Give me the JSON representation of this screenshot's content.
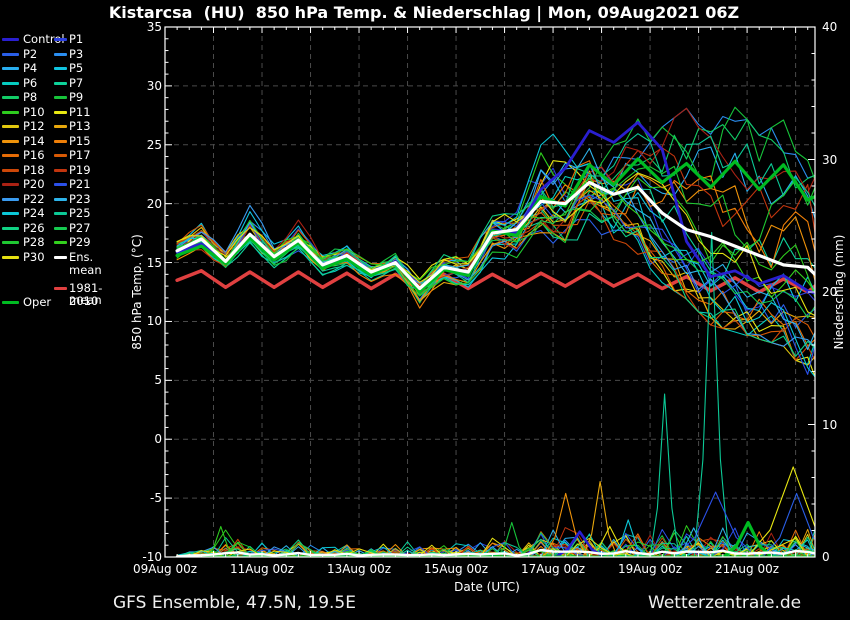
{
  "title": "Kistarcsa  (HU)  850 hPa Temp. & Niederschlag | Mon, 09Aug2021 06Z",
  "footer": {
    "left": "GFS Ensemble, 47.5N, 19.5E",
    "right": "Wetterzentrale.de"
  },
  "axes": {
    "x": {
      "label": "Date (UTC)",
      "tick_labels": [
        "09Aug 00z",
        "11Aug 00z",
        "13Aug 00z",
        "15Aug 00z",
        "17Aug 00z",
        "19Aug 00z",
        "21Aug 00z"
      ],
      "range_days": [
        0,
        13.4
      ],
      "minor_tick_hours": 6,
      "major_tick_hours": 24
    },
    "y_left": {
      "label": "850 hPa Temp. (°C)",
      "min": -10,
      "max": 35,
      "tick_step": 5,
      "minor_step": 1,
      "tick_labels": [
        "35",
        "30",
        "25",
        "20",
        "15",
        "10",
        "5",
        "0",
        "-5",
        "-10"
      ]
    },
    "y_right": {
      "label": "Niederschlag (mm)",
      "min": 0,
      "max": 40,
      "tick_step": 10,
      "minor_step": 2,
      "tick_labels": [
        "40",
        "30",
        "20",
        "10",
        "0"
      ]
    }
  },
  "legend": {
    "ens_mean_label": "Ens. mean",
    "climate_label_line1": "1981-2010",
    "climate_label_line2": "mean",
    "oper_label": "Oper"
  },
  "colors": {
    "background": "#000000",
    "text": "#ffffff",
    "grid": "#4a4a4a",
    "frame": "#ffffff",
    "ens_mean": "#ffffff",
    "climate_mean": "#e04040",
    "oper": "#00bb22",
    "control": "#2a1fd0"
  },
  "chart_data": {
    "type": "line",
    "title": "Kistarcsa (HU) 850 hPa Temp. & Niederschlag | Mon, 09Aug2021 06Z",
    "x_unit": "days since 09Aug2021 00Z",
    "sample_times_days": [
      0.25,
      0.75,
      1.25,
      1.75,
      2.25,
      2.75,
      3.25,
      3.75,
      4.25,
      4.75,
      5.25,
      5.75,
      6.25,
      6.75,
      7.25,
      7.75,
      8.25,
      8.75,
      9.25,
      9.75,
      10.25,
      10.75,
      11.25,
      11.75,
      12.25,
      12.75,
      13.25,
      13.4
    ],
    "temp_axis_range": [
      -10,
      35
    ],
    "precip_axis_range": [
      0,
      40
    ],
    "members": [
      {
        "name": "Control",
        "color": "#2a1fd0",
        "thick": true,
        "temp": [
          15.9,
          16.6,
          15.0,
          17.3,
          15.4,
          16.8,
          14.6,
          15.5,
          14.0,
          15.1,
          12.6,
          14.5,
          14.0,
          17.8,
          17.5,
          21.2,
          23.0,
          26.2,
          25.2,
          26.9,
          24.6,
          16.8,
          13.8,
          14.3,
          13.2,
          13.9,
          12.6,
          12.4
        ]
      },
      {
        "name": "P1",
        "color": "#2b3fe0"
      },
      {
        "name": "P2",
        "color": "#2a5fe8"
      },
      {
        "name": "P3",
        "color": "#2a8ef0"
      },
      {
        "name": "P4",
        "color": "#29aef0"
      },
      {
        "name": "P5",
        "color": "#10c4e0"
      },
      {
        "name": "P6",
        "color": "#06ccc0"
      },
      {
        "name": "P7",
        "color": "#0ed29a"
      },
      {
        "name": "P8",
        "color": "#12cc66"
      },
      {
        "name": "P9",
        "color": "#17c33a"
      },
      {
        "name": "P10",
        "color": "#2ecc1e"
      },
      {
        "name": "P11",
        "color": "#e8e812"
      },
      {
        "name": "P12",
        "color": "#e2c80e"
      },
      {
        "name": "P13",
        "color": "#e8a80c"
      },
      {
        "name": "P14",
        "color": "#ef930a"
      },
      {
        "name": "P15",
        "color": "#ef7f08"
      },
      {
        "name": "P16",
        "color": "#e56c06"
      },
      {
        "name": "P17",
        "color": "#d85a05"
      },
      {
        "name": "P18",
        "color": "#cc4708"
      },
      {
        "name": "P19",
        "color": "#c2350e"
      },
      {
        "name": "P20",
        "color": "#aa2214"
      },
      {
        "name": "P21",
        "color": "#2b50e8"
      },
      {
        "name": "P22",
        "color": "#3a9bf0"
      },
      {
        "name": "P23",
        "color": "#2eb4ea"
      },
      {
        "name": "P24",
        "color": "#0cc8d8"
      },
      {
        "name": "P25",
        "color": "#0cc996"
      },
      {
        "name": "P26",
        "color": "#10d284"
      },
      {
        "name": "P27",
        "color": "#16ca50"
      },
      {
        "name": "P28",
        "color": "#1fc832"
      },
      {
        "name": "P29",
        "color": "#33d01e"
      },
      {
        "name": "P30",
        "color": "#e6e112"
      }
    ],
    "ens_mean_temp": [
      16.0,
      17.0,
      15.1,
      17.4,
      15.5,
      16.9,
      14.8,
      15.6,
      14.2,
      15.0,
      12.8,
      14.6,
      14.2,
      17.5,
      17.8,
      20.2,
      20.0,
      21.8,
      20.8,
      21.4,
      19.2,
      17.8,
      17.2,
      16.4,
      15.6,
      14.8,
      14.6,
      14.0
    ],
    "oper_temp": [
      15.6,
      16.4,
      14.9,
      17.1,
      15.2,
      16.7,
      14.5,
      15.3,
      13.9,
      15.0,
      12.5,
      14.4,
      13.9,
      17.7,
      17.3,
      20.6,
      19.8,
      23.3,
      21.6,
      23.8,
      21.8,
      23.4,
      21.4,
      23.6,
      21.2,
      23.3,
      20.3,
      20.6
    ],
    "climate_mean_temp": [
      13.5,
      14.3,
      12.9,
      14.2,
      12.9,
      14.2,
      12.9,
      14.1,
      12.8,
      14.0,
      12.8,
      14.0,
      12.8,
      14.0,
      12.9,
      14.1,
      13.0,
      14.2,
      13.0,
      14.0,
      12.8,
      13.8,
      12.6,
      13.7,
      12.5,
      13.6,
      12.5,
      13.0
    ],
    "temp_envelope": {
      "min": [
        15.2,
        15.8,
        14.2,
        16.2,
        14.4,
        15.8,
        13.8,
        14.6,
        13.2,
        14.0,
        10.8,
        13.2,
        12.8,
        15.6,
        15.2,
        17.0,
        16.4,
        18.0,
        16.2,
        16.0,
        13.6,
        12.2,
        10.0,
        9.4,
        8.8,
        8.2,
        5.8,
        5.6
      ],
      "max": [
        17.0,
        18.4,
        16.2,
        19.6,
        16.6,
        18.8,
        16.0,
        16.8,
        15.2,
        16.2,
        14.2,
        16.0,
        15.6,
        19.6,
        19.8,
        25.4,
        26.0,
        26.8,
        25.6,
        27.2,
        26.2,
        27.8,
        26.0,
        28.2,
        25.5,
        26.8,
        25.2,
        24.8
      ]
    },
    "precip_activity_mm": [
      0.4,
      0.6,
      2.8,
      1.5,
      1.0,
      1.6,
      0.8,
      1.2,
      0.8,
      1.6,
      1.0,
      1.2,
      1.4,
      1.6,
      1.4,
      2.6,
      2.6,
      2.2,
      2.0,
      2.6,
      2.4,
      2.6,
      2.4,
      2.6,
      2.2,
      2.4,
      2.6,
      2.4
    ],
    "precip_spikes": [
      {
        "member": "P25",
        "t": 10.3,
        "peak_mm": 12.3,
        "width_days": 0.3
      },
      {
        "member": "P25",
        "t": 11.27,
        "peak_mm": 24.5,
        "width_days": 0.36
      },
      {
        "member": "P14",
        "t": 8.26,
        "peak_mm": 4.8,
        "width_days": 0.45
      },
      {
        "member": "P13",
        "t": 8.97,
        "peak_mm": 5.7,
        "width_days": 0.35
      },
      {
        "member": "P30",
        "t": 9.17,
        "peak_mm": 2.3,
        "width_days": 0.45
      },
      {
        "member": "P21",
        "t": 11.35,
        "peak_mm": 4.9,
        "width_days": 0.85
      },
      {
        "member": "P2",
        "t": 13.02,
        "peak_mm": 4.8,
        "width_days": 0.7
      },
      {
        "member": "P11",
        "t": 12.95,
        "peak_mm": 6.8,
        "width_days": 0.95
      },
      {
        "member": "Oper",
        "t": 12.02,
        "peak_mm": 2.6,
        "width_days": 0.5
      },
      {
        "member": "Control",
        "t": 8.55,
        "peak_mm": 1.9,
        "width_days": 0.5
      },
      {
        "member": "P9",
        "t": 7.15,
        "peak_mm": 2.6,
        "width_days": 0.3
      },
      {
        "member": "P10",
        "t": 1.15,
        "peak_mm": 2.3,
        "width_days": 0.3
      },
      {
        "member": "P24",
        "t": 9.55,
        "peak_mm": 2.8,
        "width_days": 0.35
      },
      {
        "member": "P23",
        "t": 10.9,
        "peak_mm": 2.2,
        "width_days": 0.4
      }
    ]
  }
}
